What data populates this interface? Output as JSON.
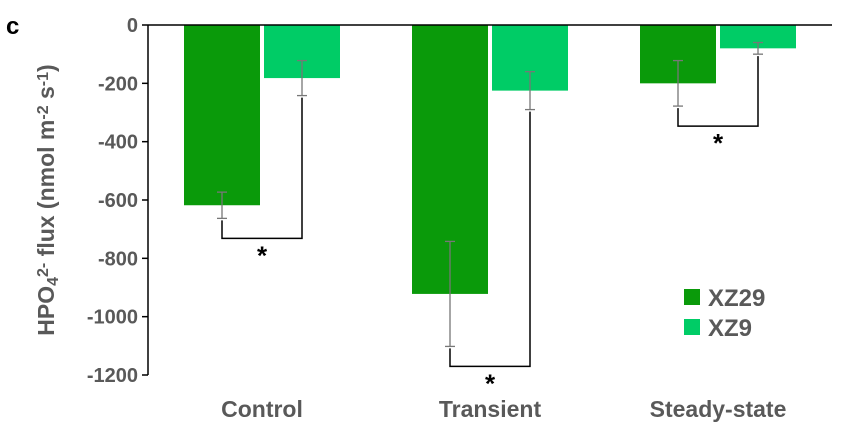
{
  "panel_letter": "c",
  "chart_data": {
    "type": "bar",
    "title": "",
    "xlabel": "",
    "ylabel": {
      "parts": [
        {
          "text": "HPO",
          "style": "normal"
        },
        {
          "text": "4",
          "style": "sub"
        },
        {
          "text": "2-",
          "style": "sup"
        },
        {
          "text": " flux (nmol m",
          "style": "normal"
        },
        {
          "text": "-2",
          "style": "sup"
        },
        {
          "text": " s",
          "style": "normal"
        },
        {
          "text": "-1",
          "style": "sup"
        },
        {
          "text": ")",
          "style": "normal"
        }
      ]
    },
    "ylim": [
      -1200,
      0
    ],
    "yticks": [
      "0",
      "-200",
      "-400",
      "-600",
      "-800",
      "-1000",
      "-1200"
    ],
    "categories": [
      "Control",
      "Transient",
      "Steady-state"
    ],
    "series": [
      {
        "name": "XZ29",
        "color": "#0a9a0a",
        "values": [
          -618,
          -922,
          -200
        ],
        "errors": [
          45,
          180,
          78
        ]
      },
      {
        "name": "XZ9",
        "color": "#00cc66",
        "values": [
          -182,
          -225,
          -80
        ],
        "errors": [
          60,
          65,
          20
        ]
      }
    ],
    "significance": [
      {
        "category": "Control",
        "label": "*"
      },
      {
        "category": "Transient",
        "label": "*"
      },
      {
        "category": "Steady-state",
        "label": "*"
      }
    ],
    "legend_position": "bottom-right",
    "grid": false
  }
}
